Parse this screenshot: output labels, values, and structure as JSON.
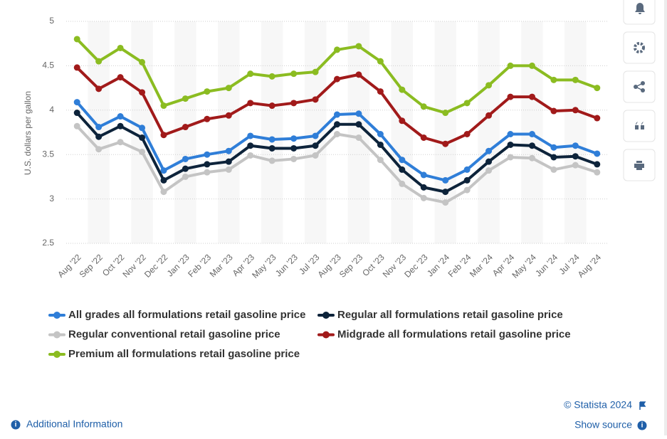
{
  "chart_data": {
    "type": "line",
    "y_label": "U.S. dollars per gallon",
    "categories": [
      "Aug '22",
      "Sep '22",
      "Oct '22",
      "Nov '22",
      "Dec '22",
      "Jan '23",
      "Feb '23",
      "Mar '23",
      "Apr '23",
      "May '23",
      "Jun '23",
      "Jul '23",
      "Aug '23",
      "Sep '23",
      "Oct '23",
      "Nov '23",
      "Dec '23",
      "Jan '24",
      "Feb '24",
      "Mar '24",
      "Apr '24",
      "May '24",
      "Jun '24",
      "Jul '24",
      "Aug '24"
    ],
    "series": [
      {
        "name": "All grades all formulations retail gasoline price",
        "color": "#2f7ed8",
        "values": [
          4.09,
          3.81,
          3.93,
          3.8,
          3.32,
          3.45,
          3.5,
          3.54,
          3.71,
          3.67,
          3.68,
          3.71,
          3.95,
          3.96,
          3.73,
          3.44,
          3.27,
          3.21,
          3.33,
          3.54,
          3.73,
          3.73,
          3.58,
          3.6,
          3.51
        ]
      },
      {
        "name": "Regular all formulations retail gasoline price",
        "color": "#0d233a",
        "values": [
          3.97,
          3.7,
          3.82,
          3.69,
          3.21,
          3.34,
          3.39,
          3.42,
          3.6,
          3.57,
          3.57,
          3.6,
          3.84,
          3.84,
          3.61,
          3.33,
          3.13,
          3.08,
          3.21,
          3.42,
          3.61,
          3.6,
          3.47,
          3.48,
          3.39
        ]
      },
      {
        "name": "Regular conventional retail gasoline price",
        "color": "#c4c4c4",
        "values": [
          3.82,
          3.56,
          3.64,
          3.53,
          3.08,
          3.25,
          3.3,
          3.33,
          3.49,
          3.43,
          3.45,
          3.49,
          3.73,
          3.69,
          3.44,
          3.17,
          3.01,
          2.96,
          3.1,
          3.32,
          3.47,
          3.46,
          3.33,
          3.38,
          3.3
        ]
      },
      {
        "name": "Midgrade all formulations retail gasoline price",
        "color": "#a11a1a",
        "values": [
          4.48,
          4.24,
          4.37,
          4.2,
          3.72,
          3.81,
          3.9,
          3.94,
          4.08,
          4.05,
          4.08,
          4.12,
          4.35,
          4.4,
          4.21,
          3.88,
          3.69,
          3.62,
          3.73,
          3.94,
          4.15,
          4.15,
          3.99,
          4.0,
          3.91
        ]
      },
      {
        "name": "Premium all formulations retail gasoline price",
        "color": "#8bbc21",
        "values": [
          4.8,
          4.55,
          4.7,
          4.54,
          4.05,
          4.13,
          4.21,
          4.25,
          4.41,
          4.38,
          4.41,
          4.43,
          4.68,
          4.72,
          4.55,
          4.23,
          4.04,
          3.97,
          4.08,
          4.28,
          4.5,
          4.5,
          4.34,
          4.34,
          4.25
        ]
      }
    ],
    "ylim": [
      2.5,
      5
    ],
    "yticks": [
      2.5,
      3,
      3.5,
      4,
      4.5,
      5
    ],
    "grid": true
  },
  "footer": {
    "copyright": "© Statista 2024",
    "show_source": "Show source",
    "additional_info": "Additional Information"
  }
}
